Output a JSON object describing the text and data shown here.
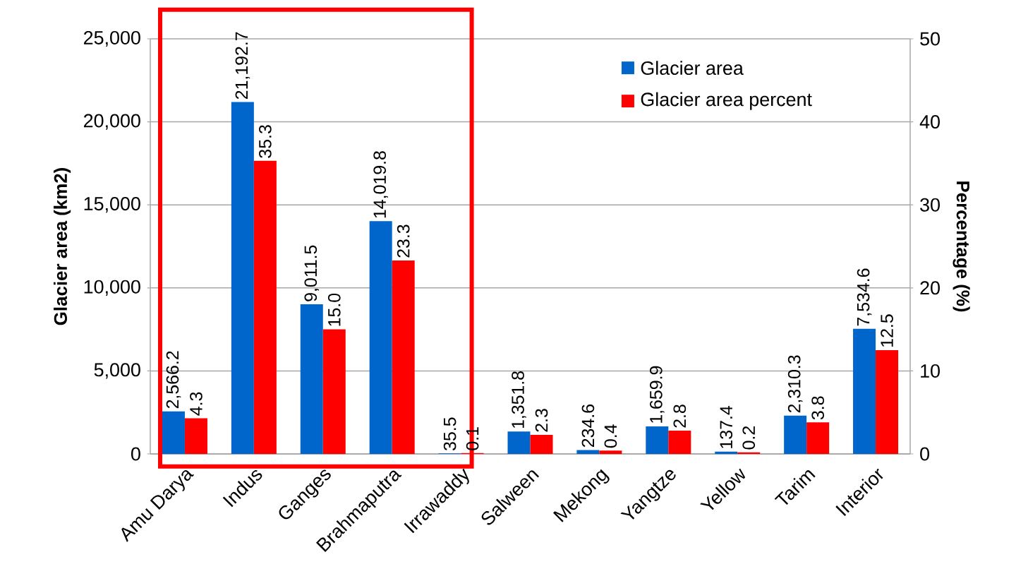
{
  "chart_data": {
    "type": "bar",
    "categories": [
      "Amu Darya",
      "Indus",
      "Ganges",
      "Brahmaputra",
      "Irrawaddy",
      "Salween",
      "Mekong",
      "Yangtze",
      "Yellow",
      "Tarim",
      "Interior"
    ],
    "series": [
      {
        "name": "Glacier area",
        "color": "#0066cc",
        "values": [
          2566.2,
          21192.7,
          9011.5,
          14019.8,
          35.5,
          1351.8,
          234.6,
          1659.9,
          137.4,
          2310.3,
          7534.6
        ],
        "value_labels": [
          "2,566.2",
          "21,192.7",
          "9,011.5",
          "14,019.8",
          "35.5",
          "1,351.8",
          "234.6",
          "1,659.9",
          "137.4",
          "2,310.3",
          "7,534.6"
        ]
      },
      {
        "name": "Glacier area percent",
        "color": "#ff0000",
        "axis": "y2",
        "values": [
          4.3,
          35.3,
          15.0,
          23.3,
          0.1,
          2.3,
          0.4,
          2.8,
          0.2,
          3.8,
          12.5
        ],
        "value_labels": [
          "4.3",
          "35.3",
          "15.0",
          "23.3",
          "0.1",
          "2.3",
          "0.4",
          "2.8",
          "0.2",
          "3.8",
          "12.5"
        ]
      }
    ],
    "ylabel": "Glacier area (km2)",
    "y2label": "Percentage (%)",
    "ylim": [
      0,
      25000
    ],
    "yticks": [
      {
        "value": 0,
        "label": "0"
      },
      {
        "value": 5000,
        "label": "5,000"
      },
      {
        "value": 10000,
        "label": "10,000"
      },
      {
        "value": 15000,
        "label": "15,000"
      },
      {
        "value": 20000,
        "label": "20,000"
      },
      {
        "value": 25000,
        "label": "25,000"
      }
    ],
    "y2lim": [
      0,
      50
    ],
    "y2ticks": [
      0,
      10,
      20,
      30,
      40,
      50
    ],
    "grid": "y",
    "legend": "top right"
  }
}
